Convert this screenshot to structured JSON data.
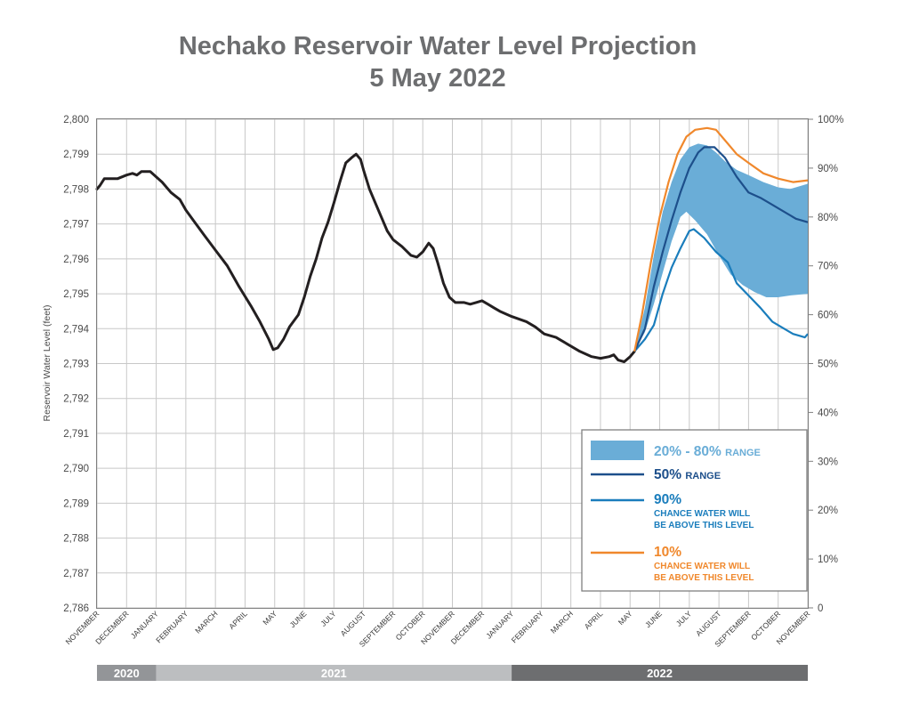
{
  "chart_data": {
    "type": "line",
    "title_lines": [
      "Nechako Reservoir Water Level Projection",
      "5 May 2022"
    ],
    "ylabel": "Reservoir Water Level (feet)",
    "ylim": [
      2786,
      2800
    ],
    "y_ticks": [
      "2,786",
      "2,787",
      "2,788",
      "2,789",
      "2,790",
      "2,791",
      "2,792",
      "2,793",
      "2,794",
      "2,795",
      "2,796",
      "2,797",
      "2,798",
      "2,799",
      "2,800"
    ],
    "y2_ticks": [
      "0",
      "10%",
      "20%",
      "30%",
      "40%",
      "50%",
      "60%",
      "70%",
      "80%",
      "90%",
      "100%"
    ],
    "months": [
      "NOVEMBER",
      "DECEMBER",
      "JANUARY",
      "FEBRUARY",
      "MARCH",
      "APRIL",
      "MAY",
      "JUNE",
      "JULY",
      "AUGUST",
      "SEPTEMBER",
      "OCTOBER",
      "NOVEMBER",
      "DECEMBER",
      "JANUARY",
      "FEBRUARY",
      "MARCH",
      "APRIL",
      "MAY",
      "JUNE",
      "JULY",
      "AUGUST",
      "SEPTEMBER",
      "OCTOBER",
      "NOVEMBER"
    ],
    "years": [
      {
        "label": "2020",
        "start": 0,
        "end": 2,
        "color": "#939598"
      },
      {
        "label": "2021",
        "start": 2,
        "end": 14,
        "color": "#bcbec0"
      },
      {
        "label": "2022",
        "start": 14,
        "end": 24,
        "color": "#6d6e70"
      }
    ],
    "grid": true,
    "x_unit": "months since November 2020",
    "historical": {
      "color": "#231f20",
      "points": [
        [
          0,
          2798.0
        ],
        [
          0.1,
          2798.1
        ],
        [
          0.25,
          2798.3
        ],
        [
          0.5,
          2798.3
        ],
        [
          0.7,
          2798.3
        ],
        [
          1.0,
          2798.4
        ],
        [
          1.2,
          2798.45
        ],
        [
          1.35,
          2798.4
        ],
        [
          1.5,
          2798.5
        ],
        [
          1.8,
          2798.5
        ],
        [
          2.0,
          2798.35
        ],
        [
          2.2,
          2798.2
        ],
        [
          2.5,
          2797.9
        ],
        [
          2.8,
          2797.7
        ],
        [
          3.0,
          2797.4
        ],
        [
          3.3,
          2797.05
        ],
        [
          3.6,
          2796.7
        ],
        [
          4.0,
          2796.25
        ],
        [
          4.4,
          2795.8
        ],
        [
          4.8,
          2795.2
        ],
        [
          5.2,
          2794.65
        ],
        [
          5.5,
          2794.2
        ],
        [
          5.8,
          2793.7
        ],
        [
          5.95,
          2793.4
        ],
        [
          6.1,
          2793.45
        ],
        [
          6.3,
          2793.7
        ],
        [
          6.5,
          2794.05
        ],
        [
          6.8,
          2794.4
        ],
        [
          7.0,
          2794.9
        ],
        [
          7.2,
          2795.5
        ],
        [
          7.4,
          2796.0
        ],
        [
          7.6,
          2796.6
        ],
        [
          7.8,
          2797.05
        ],
        [
          8.0,
          2797.6
        ],
        [
          8.2,
          2798.2
        ],
        [
          8.4,
          2798.75
        ],
        [
          8.6,
          2798.9
        ],
        [
          8.75,
          2799.0
        ],
        [
          8.9,
          2798.85
        ],
        [
          9.0,
          2798.55
        ],
        [
          9.2,
          2798.0
        ],
        [
          9.4,
          2797.6
        ],
        [
          9.6,
          2797.2
        ],
        [
          9.8,
          2796.8
        ],
        [
          10.0,
          2796.55
        ],
        [
          10.3,
          2796.35
        ],
        [
          10.6,
          2796.1
        ],
        [
          10.8,
          2796.05
        ],
        [
          11.0,
          2796.2
        ],
        [
          11.2,
          2796.45
        ],
        [
          11.35,
          2796.3
        ],
        [
          11.5,
          2795.9
        ],
        [
          11.7,
          2795.3
        ],
        [
          11.9,
          2794.9
        ],
        [
          12.1,
          2794.75
        ],
        [
          12.4,
          2794.75
        ],
        [
          12.6,
          2794.7
        ],
        [
          12.8,
          2794.75
        ],
        [
          13.0,
          2794.8
        ],
        [
          13.2,
          2794.7
        ],
        [
          13.4,
          2794.6
        ],
        [
          13.6,
          2794.5
        ],
        [
          14.0,
          2794.35
        ],
        [
          14.5,
          2794.2
        ],
        [
          14.8,
          2794.05
        ],
        [
          15.1,
          2793.85
        ],
        [
          15.5,
          2793.75
        ],
        [
          15.9,
          2793.55
        ],
        [
          16.3,
          2793.35
        ],
        [
          16.7,
          2793.2
        ],
        [
          17.0,
          2793.15
        ],
        [
          17.3,
          2793.2
        ],
        [
          17.45,
          2793.25
        ],
        [
          17.6,
          2793.1
        ],
        [
          17.8,
          2793.05
        ],
        [
          18.0,
          2793.2
        ],
        [
          18.15,
          2793.35
        ]
      ]
    },
    "series": [
      {
        "name": "20% - 80%",
        "label_suffix": "RANGE",
        "kind": "band",
        "color": "#6aadd7",
        "upper": [
          [
            18.15,
            2793.35
          ],
          [
            18.5,
            2794.6
          ],
          [
            18.8,
            2796.1
          ],
          [
            19.1,
            2797.35
          ],
          [
            19.4,
            2798.2
          ],
          [
            19.7,
            2798.85
          ],
          [
            20.0,
            2799.2
          ],
          [
            20.3,
            2799.3
          ],
          [
            20.6,
            2799.25
          ],
          [
            20.9,
            2799.05
          ],
          [
            21.2,
            2798.8
          ],
          [
            21.6,
            2798.55
          ],
          [
            22.0,
            2798.4
          ],
          [
            22.5,
            2798.2
          ],
          [
            23.0,
            2798.05
          ],
          [
            23.4,
            2798.0
          ],
          [
            24.0,
            2798.15
          ]
        ],
        "lower": [
          [
            18.15,
            2793.35
          ],
          [
            18.5,
            2793.9
          ],
          [
            18.8,
            2794.7
          ],
          [
            19.1,
            2795.6
          ],
          [
            19.4,
            2796.5
          ],
          [
            19.7,
            2797.2
          ],
          [
            19.9,
            2797.35
          ],
          [
            20.2,
            2797.1
          ],
          [
            20.6,
            2796.7
          ],
          [
            21.0,
            2796.1
          ],
          [
            21.4,
            2795.55
          ],
          [
            21.8,
            2795.25
          ],
          [
            22.2,
            2795.05
          ],
          [
            22.6,
            2794.9
          ],
          [
            23.0,
            2794.9
          ],
          [
            23.4,
            2794.95
          ],
          [
            24.0,
            2795.0
          ]
        ]
      },
      {
        "name": "50%",
        "label_suffix": "RANGE",
        "kind": "line",
        "color": "#1d4f8b",
        "points": [
          [
            18.15,
            2793.35
          ],
          [
            18.5,
            2794.0
          ],
          [
            18.8,
            2795.2
          ],
          [
            19.1,
            2796.2
          ],
          [
            19.4,
            2797.1
          ],
          [
            19.7,
            2797.9
          ],
          [
            20.0,
            2798.6
          ],
          [
            20.3,
            2799.05
          ],
          [
            20.5,
            2799.2
          ],
          [
            20.7,
            2799.2
          ],
          [
            20.85,
            2799.2
          ],
          [
            21.2,
            2798.9
          ],
          [
            21.6,
            2798.35
          ],
          [
            22.0,
            2797.9
          ],
          [
            22.4,
            2797.75
          ],
          [
            22.8,
            2797.55
          ],
          [
            23.2,
            2797.35
          ],
          [
            23.6,
            2797.15
          ],
          [
            24.0,
            2797.05
          ]
        ]
      },
      {
        "name": "90%",
        "label_line1": "CHANCE WATER WILL",
        "label_line2": "BE ABOVE THIS LEVEL",
        "kind": "line",
        "color": "#1a7dbc",
        "points": [
          [
            18.15,
            2793.35
          ],
          [
            18.5,
            2793.7
          ],
          [
            18.8,
            2794.1
          ],
          [
            19.1,
            2795.0
          ],
          [
            19.4,
            2795.75
          ],
          [
            19.7,
            2796.3
          ],
          [
            20.0,
            2796.8
          ],
          [
            20.15,
            2796.85
          ],
          [
            20.5,
            2796.6
          ],
          [
            20.9,
            2796.2
          ],
          [
            21.3,
            2795.9
          ],
          [
            21.6,
            2795.3
          ],
          [
            22.0,
            2794.95
          ],
          [
            22.4,
            2794.6
          ],
          [
            22.8,
            2794.2
          ],
          [
            23.2,
            2794.0
          ],
          [
            23.5,
            2793.85
          ],
          [
            23.7,
            2793.8
          ],
          [
            23.9,
            2793.75
          ],
          [
            24.0,
            2793.85
          ]
        ]
      },
      {
        "name": "10%",
        "label_line1": "CHANCE WATER WILL",
        "label_line2": "BE ABOVE THIS LEVEL",
        "kind": "line",
        "color": "#f0882c",
        "points": [
          [
            18.15,
            2793.35
          ],
          [
            18.4,
            2794.4
          ],
          [
            18.7,
            2795.9
          ],
          [
            19.0,
            2797.2
          ],
          [
            19.3,
            2798.2
          ],
          [
            19.6,
            2799.0
          ],
          [
            19.9,
            2799.5
          ],
          [
            20.2,
            2799.7
          ],
          [
            20.6,
            2799.75
          ],
          [
            20.9,
            2799.7
          ],
          [
            21.2,
            2799.4
          ],
          [
            21.6,
            2799.0
          ],
          [
            22.0,
            2798.75
          ],
          [
            22.5,
            2798.45
          ],
          [
            23.0,
            2798.3
          ],
          [
            23.5,
            2798.2
          ],
          [
            24.0,
            2798.25
          ]
        ]
      }
    ]
  }
}
